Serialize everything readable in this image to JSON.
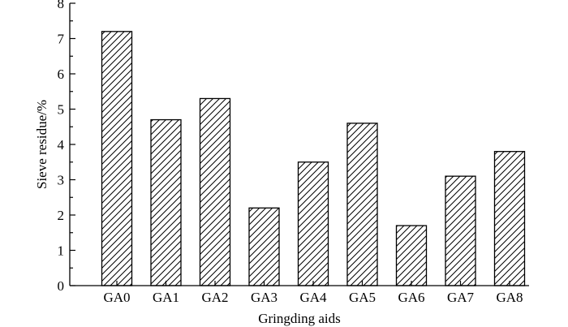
{
  "chart_data": {
    "type": "bar",
    "title": "",
    "xlabel": "Gringding aids",
    "ylabel": "Sieve residue/%",
    "categories": [
      "GA0",
      "GA1",
      "GA2",
      "GA3",
      "GA4",
      "GA5",
      "GA6",
      "GA7",
      "GA8"
    ],
    "values": [
      7.2,
      4.7,
      5.3,
      2.2,
      3.5,
      4.6,
      1.7,
      3.1,
      3.8
    ],
    "ylim": [
      0,
      8
    ],
    "yticks": [
      0,
      1,
      2,
      3,
      4,
      5,
      6,
      7,
      8
    ],
    "grid": false,
    "bar_fill": "diagonal-hatch",
    "colors": {
      "stroke": "#000000",
      "background": "#ffffff"
    }
  }
}
